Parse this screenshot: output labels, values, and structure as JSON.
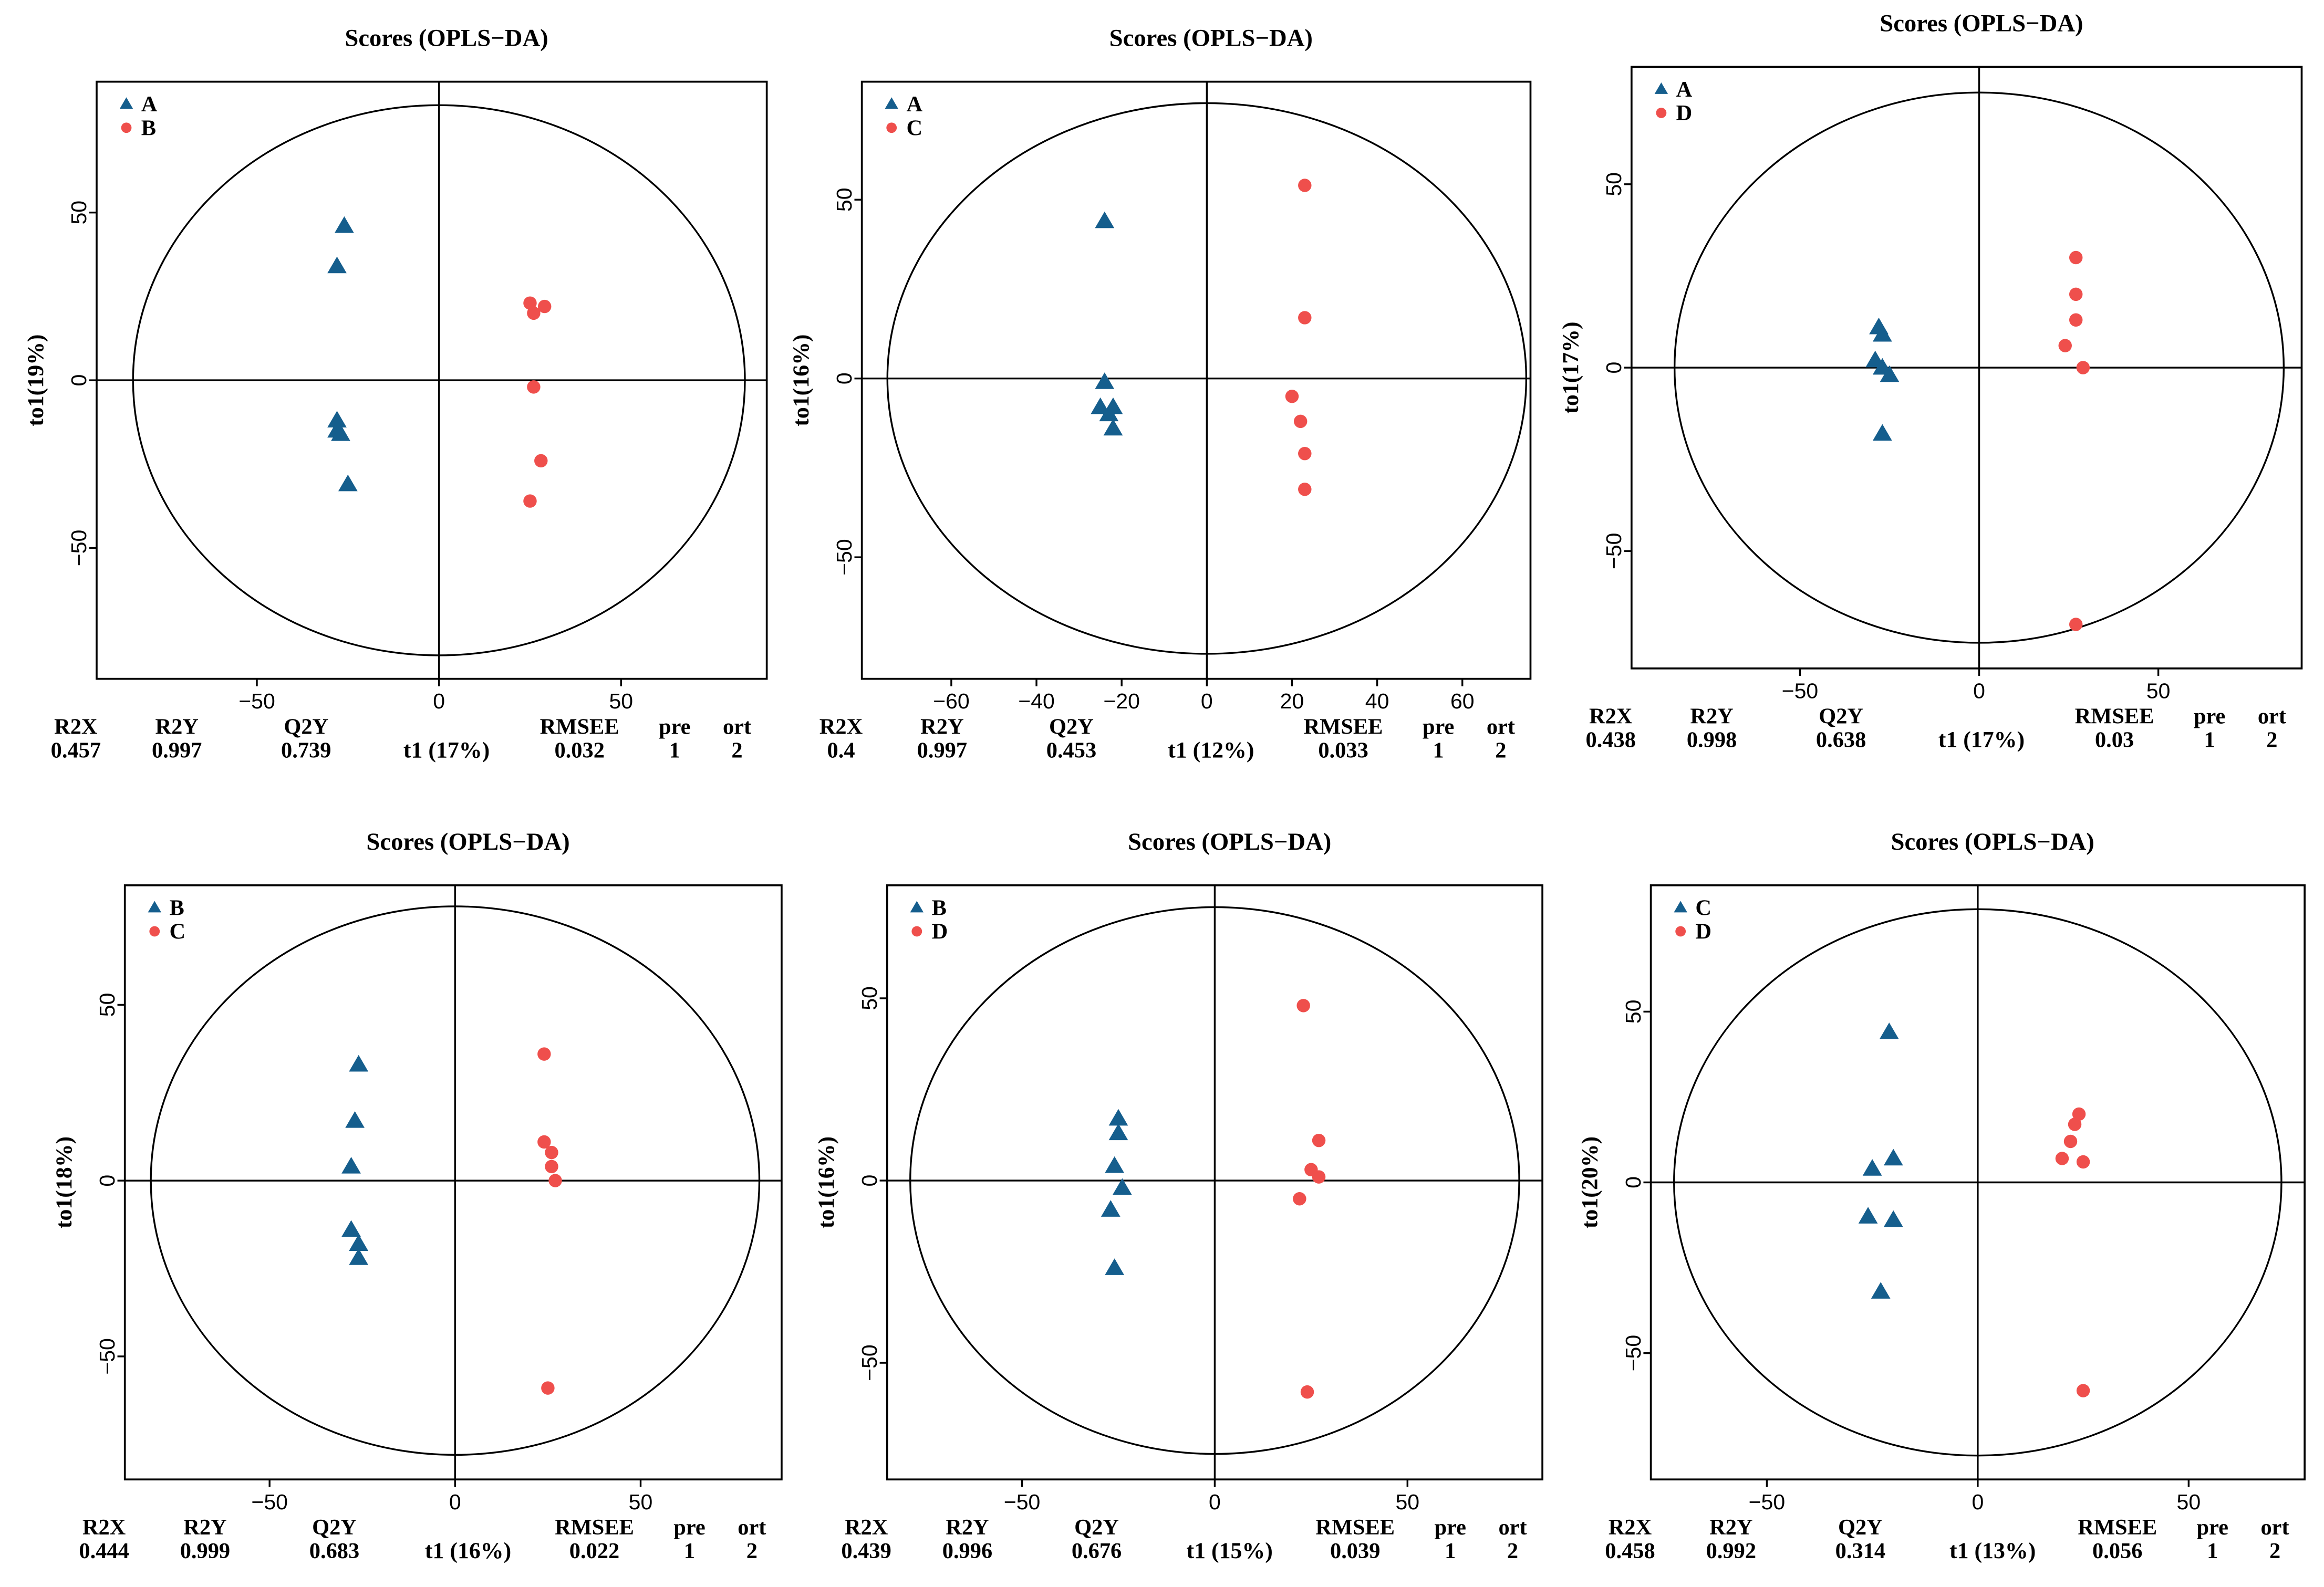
{
  "chart_data": [
    {
      "type": "scatter",
      "title": "Scores (OPLS−DA)",
      "xlabel": "t1 (17%)",
      "ylabel": "to1(19%)",
      "xlim": [
        -94,
        90
      ],
      "ylim": [
        -89,
        89
      ],
      "xticks": [
        -50,
        0,
        50
      ],
      "xtick_labels": [
        "−50",
        "0",
        "50"
      ],
      "yticks": [
        -50,
        0,
        50
      ],
      "ytick_labels": [
        "−50",
        "0",
        "50"
      ],
      "ellipse_semi_axes": {
        "t1": 84,
        "to1": 82
      },
      "legend_position": "top-left",
      "series": [
        {
          "name": "A",
          "marker": "triangle",
          "color": "#155e8d",
          "points": [
            [
              -26,
              46
            ],
            [
              -28,
              34
            ],
            [
              -28,
              -12
            ],
            [
              -28,
              -15
            ],
            [
              -27,
              -16
            ],
            [
              -25,
              -31
            ]
          ]
        },
        {
          "name": "B",
          "marker": "circle",
          "color": "#ef4f4c",
          "points": [
            [
              25,
              23
            ],
            [
              26,
              20
            ],
            [
              29,
              22
            ],
            [
              26,
              -2
            ],
            [
              28,
              -24
            ],
            [
              25,
              -36
            ]
          ]
        }
      ],
      "metrics": [
        {
          "label": "R2X",
          "value": "0.457"
        },
        {
          "label": "R2Y",
          "value": "0.997"
        },
        {
          "label": "Q2Y",
          "value": "0.739"
        },
        {
          "label": "RMSEE",
          "value": "0.032"
        },
        {
          "label": "pre",
          "value": "1"
        },
        {
          "label": "ort",
          "value": "2"
        }
      ]
    },
    {
      "type": "scatter",
      "title": "Scores (OPLS−DA)",
      "xlabel": "t1 (12%)",
      "ylabel": "to1(16%)",
      "xlim": [
        -81,
        76
      ],
      "ylim": [
        -84,
        83
      ],
      "xticks": [
        -60,
        -40,
        -20,
        0,
        20,
        40,
        60
      ],
      "xtick_labels": [
        "−60",
        "−40",
        "−20",
        "0",
        "20",
        "40",
        "60"
      ],
      "yticks": [
        -50,
        0,
        50
      ],
      "ytick_labels": [
        "−50",
        "0",
        "50"
      ],
      "ellipse_semi_axes": {
        "t1": 75,
        "to1": 77
      },
      "legend_position": "top-left",
      "series": [
        {
          "name": "A",
          "marker": "triangle",
          "color": "#155e8d",
          "points": [
            [
              -24,
              44
            ],
            [
              -24,
              -1
            ],
            [
              -25,
              -8
            ],
            [
              -23,
              -10
            ],
            [
              -22,
              -8
            ],
            [
              -22,
              -14
            ]
          ]
        },
        {
          "name": "C",
          "marker": "circle",
          "color": "#ef4f4c",
          "points": [
            [
              23,
              54
            ],
            [
              23,
              17
            ],
            [
              20,
              -5
            ],
            [
              22,
              -12
            ],
            [
              23,
              -21
            ],
            [
              23,
              -31
            ]
          ]
        }
      ],
      "metrics": [
        {
          "label": "R2X",
          "value": "0.4"
        },
        {
          "label": "R2Y",
          "value": "0.997"
        },
        {
          "label": "Q2Y",
          "value": "0.453"
        },
        {
          "label": "RMSEE",
          "value": "0.033"
        },
        {
          "label": "pre",
          "value": "1"
        },
        {
          "label": "ort",
          "value": "2"
        }
      ]
    },
    {
      "type": "scatter",
      "title": "Scores (OPLS−DA)",
      "xlabel": "t1 (17%)",
      "ylabel": "to1(17%)",
      "xlim": [
        -97,
        90
      ],
      "ylim": [
        -82,
        82
      ],
      "xticks": [
        -50,
        0,
        50
      ],
      "xtick_labels": [
        "−50",
        "0",
        "50"
      ],
      "yticks": [
        -50,
        0,
        50
      ],
      "ytick_labels": [
        "−50",
        "0",
        "50"
      ],
      "ellipse_semi_axes": {
        "t1": 85,
        "to1": 75
      },
      "legend_position": "top-left",
      "series": [
        {
          "name": "A",
          "marker": "triangle",
          "color": "#155e8d",
          "points": [
            [
              -28,
              11
            ],
            [
              -27,
              9
            ],
            [
              -29,
              2
            ],
            [
              -27,
              0
            ],
            [
              -25,
              -2
            ],
            [
              -27,
              -18
            ]
          ]
        },
        {
          "name": "D",
          "marker": "circle",
          "color": "#ef4f4c",
          "points": [
            [
              27,
              30
            ],
            [
              27,
              20
            ],
            [
              27,
              13
            ],
            [
              24,
              6
            ],
            [
              29,
              0
            ],
            [
              27,
              -70
            ]
          ]
        }
      ],
      "metrics": [
        {
          "label": "R2X",
          "value": "0.438"
        },
        {
          "label": "R2Y",
          "value": "0.998"
        },
        {
          "label": "Q2Y",
          "value": "0.638"
        },
        {
          "label": "RMSEE",
          "value": "0.03"
        },
        {
          "label": "pre",
          "value": "1"
        },
        {
          "label": "ort",
          "value": "2"
        }
      ]
    },
    {
      "type": "scatter",
      "title": "Scores (OPLS−DA)",
      "xlabel": "t1 (16%)",
      "ylabel": "to1(18%)",
      "xlim": [
        -89,
        88
      ],
      "ylim": [
        -85,
        84
      ],
      "xticks": [
        -50,
        0,
        50
      ],
      "xtick_labels": [
        "−50",
        "0",
        "50"
      ],
      "yticks": [
        -50,
        0,
        50
      ],
      "ytick_labels": [
        "−50",
        "0",
        "50"
      ],
      "ellipse_semi_axes": {
        "t1": 82,
        "to1": 78
      },
      "legend_position": "top-left",
      "series": [
        {
          "name": "B",
          "marker": "triangle",
          "color": "#155e8d",
          "points": [
            [
              -26,
              33
            ],
            [
              -27,
              17
            ],
            [
              -28,
              4
            ],
            [
              -28,
              -14
            ],
            [
              -26,
              -18
            ],
            [
              -26,
              -22
            ]
          ]
        },
        {
          "name": "C",
          "marker": "circle",
          "color": "#ef4f4c",
          "points": [
            [
              24,
              36
            ],
            [
              24,
              11
            ],
            [
              26,
              8
            ],
            [
              26,
              4
            ],
            [
              27,
              0
            ],
            [
              25,
              -59
            ]
          ]
        }
      ],
      "metrics": [
        {
          "label": "R2X",
          "value": "0.444"
        },
        {
          "label": "R2Y",
          "value": "0.999"
        },
        {
          "label": "Q2Y",
          "value": "0.683"
        },
        {
          "label": "RMSEE",
          "value": "0.022"
        },
        {
          "label": "pre",
          "value": "1"
        },
        {
          "label": "ort",
          "value": "2"
        }
      ]
    },
    {
      "type": "scatter",
      "title": "Scores (OPLS−DA)",
      "xlabel": "t1 (15%)",
      "ylabel": "to1(16%)",
      "xlim": [
        -85,
        85
      ],
      "ylim": [
        -82,
        81
      ],
      "xticks": [
        -50,
        0,
        50
      ],
      "xtick_labels": [
        "−50",
        "0",
        "50"
      ],
      "yticks": [
        -50,
        0,
        50
      ],
      "ytick_labels": [
        "−50",
        "0",
        "50"
      ],
      "ellipse_semi_axes": {
        "t1": 79,
        "to1": 75
      },
      "legend_position": "top-left",
      "series": [
        {
          "name": "B",
          "marker": "triangle",
          "color": "#155e8d",
          "points": [
            [
              -25,
              17
            ],
            [
              -25,
              13
            ],
            [
              -26,
              4
            ],
            [
              -24,
              -2
            ],
            [
              -27,
              -8
            ],
            [
              -26,
              -24
            ]
          ]
        },
        {
          "name": "D",
          "marker": "circle",
          "color": "#ef4f4c",
          "points": [
            [
              23,
              48
            ],
            [
              27,
              11
            ],
            [
              25,
              3
            ],
            [
              27,
              1
            ],
            [
              22,
              -5
            ],
            [
              24,
              -58
            ]
          ]
        }
      ],
      "metrics": [
        {
          "label": "R2X",
          "value": "0.439"
        },
        {
          "label": "R2Y",
          "value": "0.996"
        },
        {
          "label": "Q2Y",
          "value": "0.676"
        },
        {
          "label": "RMSEE",
          "value": "0.039"
        },
        {
          "label": "pre",
          "value": "1"
        },
        {
          "label": "ort",
          "value": "2"
        }
      ]
    },
    {
      "type": "scatter",
      "title": "Scores (OPLS−DA)",
      "xlabel": "t1 (13%)",
      "ylabel": "to1(20%)",
      "xlim": [
        -77.5,
        77.5
      ],
      "ylim": [
        -87,
        87
      ],
      "xticks": [
        -50,
        0,
        50
      ],
      "xtick_labels": [
        "−50",
        "0",
        "50"
      ],
      "yticks": [
        -50,
        0,
        50
      ],
      "ytick_labels": [
        "−50",
        "0",
        "50"
      ],
      "ellipse_semi_axes": {
        "t1": 72,
        "to1": 80
      },
      "legend_position": "top-left",
      "series": [
        {
          "name": "C",
          "marker": "triangle",
          "color": "#155e8d",
          "points": [
            [
              -21,
              44
            ],
            [
              -25,
              4
            ],
            [
              -20,
              7
            ],
            [
              -26,
              -10
            ],
            [
              -20,
              -11
            ],
            [
              -23,
              -32
            ]
          ]
        },
        {
          "name": "D",
          "marker": "circle",
          "color": "#ef4f4c",
          "points": [
            [
              24,
              20
            ],
            [
              23,
              17
            ],
            [
              22,
              12
            ],
            [
              20,
              7
            ],
            [
              25,
              6
            ],
            [
              25,
              -61
            ]
          ]
        }
      ],
      "metrics": [
        {
          "label": "R2X",
          "value": "0.458"
        },
        {
          "label": "R2Y",
          "value": "0.992"
        },
        {
          "label": "Q2Y",
          "value": "0.314"
        },
        {
          "label": "RMSEE",
          "value": "0.056"
        },
        {
          "label": "pre",
          "value": "1"
        },
        {
          "label": "ort",
          "value": "2"
        }
      ]
    }
  ]
}
